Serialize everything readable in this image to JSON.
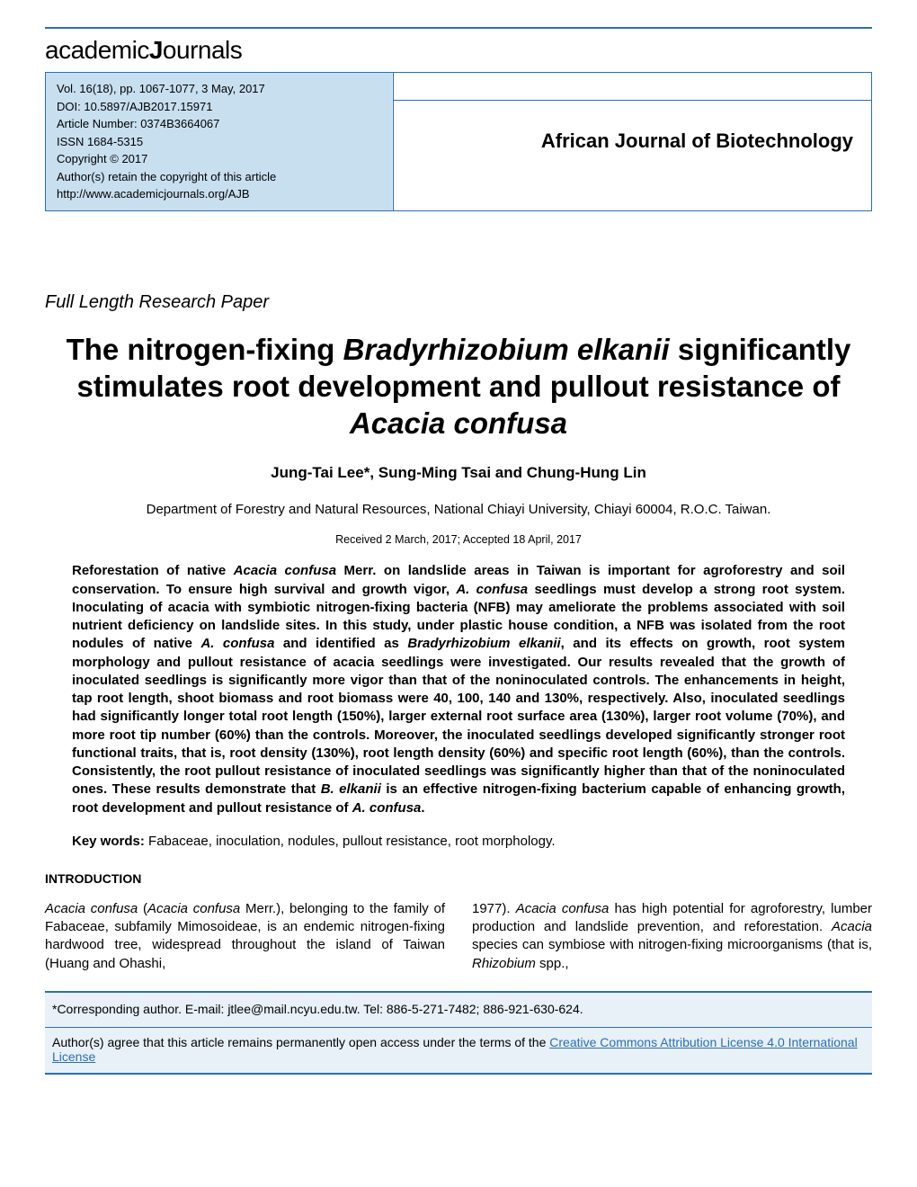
{
  "logo": {
    "part1": "academic",
    "part2": "J",
    "part3": "ournals"
  },
  "header": {
    "volume": "Vol. 16(18), pp. 1067-1077, 3 May, 2017",
    "doi": "DOI: 10.5897/AJB2017.15971",
    "article_number": "Article Number: 0374B3664067",
    "issn": "ISSN 1684-5315",
    "copyright": "Copyright © 2017",
    "retain": "Author(s) retain the copyright of this article",
    "url": "http://www.academicjournals.org/AJB",
    "journal_name": "African Journal of Biotechnology"
  },
  "paper_type": "Full Length Research Paper",
  "title": {
    "part1": "The nitrogen-fixing ",
    "species1": "Bradyrhizobium elkanii",
    "part2": " significantly stimulates root development and pullout resistance of ",
    "species2": "Acacia confusa"
  },
  "authors": "Jung-Tai Lee*, Sung-Ming Tsai and Chung-Hung Lin",
  "affiliation": "Department of Forestry and Natural Resources, National Chiayi University, Chiayi 60004, R.O.C. Taiwan.",
  "dates": "Received 2 March, 2017; Accepted 18 April, 2017",
  "abstract": "Reforestation of native <i>Acacia confusa</i> Merr. on landslide areas in Taiwan is important for agroforestry and soil conservation. To ensure high survival and growth vigor, <i>A. confusa</i> seedlings must develop a strong root system. Inoculating of acacia with symbiotic nitrogen-fixing bacteria (NFB) may ameliorate the problems associated with soil nutrient deficiency on landslide sites. In this study, under plastic house condition, a NFB was isolated from the root nodules of native <i>A. confusa</i> and identified as <i>Bradyrhizobium elkanii</i>, and its effects on growth, root system morphology and pullout resistance of acacia seedlings were investigated. Our results revealed that the growth of inoculated seedlings is significantly more vigor than that of the noninoculated controls. The enhancements in height, tap root length, shoot biomass and root biomass were 40, 100, 140 and 130%, respectively. Also, inoculated seedlings had significantly longer total root length (150%), larger external root surface area (130%), larger root volume (70%), and more root tip number (60%) than the controls. Moreover, the inoculated seedlings developed significantly stronger root functional traits, that is, root density (130%), root length density (60%) and specific root length (60%), than the controls. Consistently, the root pullout resistance of inoculated seedlings was significantly higher than that of the noninoculated ones. These results demonstrate that <i>B. elkanii</i> is an effective nitrogen-fixing bacterium capable of enhancing growth, root development and pullout resistance of <i>A. confusa</i>.",
  "keywords": {
    "label": "Key words:",
    "text": " Fabaceae, inoculation, nodules, pullout resistance, root morphology."
  },
  "section_heading": "INTRODUCTION",
  "body": {
    "left": "<i>Acacia confusa</i> (<i>Acacia confusa</i> Merr.), belonging to the family of Fabaceae, subfamily Mimosoideae, is an endemic nitrogen-fixing hardwood tree, widespread throughout the island of Taiwan (Huang and Ohashi,",
    "right": "1977). <i>Acacia confusa</i> has high potential for agroforestry, lumber production and landslide prevention, and reforestation. <i>Acacia</i> species can symbiose with nitrogen-fixing microorganisms (that is, <i>Rhizobium</i> spp.,"
  },
  "footer": {
    "corresponding": "*Corresponding author. E-mail: jtlee@mail.ncyu.edu.tw. Tel: 886-5-271-7482; 886-921-630-624.",
    "license_text": "Author(s) agree that this article remains permanently open access under the terms of the ",
    "license_link": "Creative Commons Attribution License 4.0 International License"
  }
}
